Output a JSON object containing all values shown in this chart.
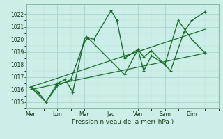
{
  "background_color": "#cceee8",
  "grid_color": "#aad4cc",
  "line_color": "#1a6e2e",
  "xlabel": "Pression niveau de la mer( hPa )",
  "ylim": [
    1014.5,
    1022.8
  ],
  "yticks": [
    1015,
    1016,
    1017,
    1018,
    1019,
    1020,
    1021,
    1022
  ],
  "day_labels": [
    "Mer",
    "Lun",
    "Mar",
    "Jeu",
    "Ven",
    "Sam",
    "Dim"
  ],
  "day_positions": [
    0,
    14,
    28,
    42,
    56,
    70,
    84
  ],
  "xlim": [
    -2,
    98
  ],
  "lines": [
    {
      "x": [
        0,
        4,
        8,
        14,
        18,
        22,
        28,
        29,
        33,
        42,
        45,
        49,
        56,
        59,
        63,
        70,
        77,
        84,
        91
      ],
      "y": [
        1016.2,
        1015.8,
        1015.0,
        1016.5,
        1016.8,
        1015.8,
        1020.0,
        1020.2,
        1020.0,
        1022.3,
        1021.5,
        1018.5,
        1019.2,
        1017.5,
        1018.7,
        1018.0,
        1021.5,
        1020.0,
        1018.9
      ],
      "has_marker": true,
      "markersize": 2.5,
      "linewidth": 1.0
    },
    {
      "x": [
        0,
        8,
        14,
        21,
        28,
        30,
        49,
        56,
        59,
        63,
        73,
        80,
        84,
        91
      ],
      "y": [
        1016.2,
        1015.0,
        1016.3,
        1016.8,
        1019.8,
        1020.1,
        1017.2,
        1019.2,
        1018.6,
        1019.1,
        1017.5,
        1020.6,
        1021.5,
        1022.2
      ],
      "has_marker": true,
      "markersize": 2.5,
      "linewidth": 1.0
    },
    {
      "x": [
        0,
        91
      ],
      "y": [
        1016.0,
        1018.9
      ],
      "has_marker": false,
      "markersize": 0,
      "linewidth": 0.9
    },
    {
      "x": [
        0,
        91
      ],
      "y": [
        1016.2,
        1020.8
      ],
      "has_marker": false,
      "markersize": 0,
      "linewidth": 0.9
    }
  ]
}
